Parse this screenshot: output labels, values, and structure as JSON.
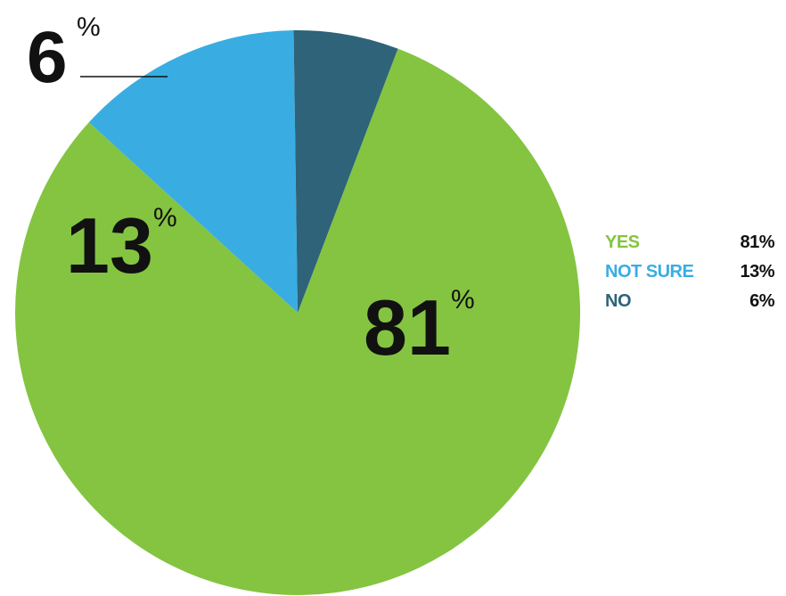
{
  "chart_data": {
    "type": "pie",
    "categories": [
      "YES",
      "NOT SURE",
      "NO"
    ],
    "values": [
      81,
      13,
      6
    ],
    "unit": "%",
    "colors": [
      "#84c441",
      "#39ade2",
      "#2e6379"
    ],
    "slice_labels": [
      "81",
      "13",
      "6"
    ],
    "slice_label_unit": "%",
    "legend": {
      "placement": "right",
      "entries": [
        {
          "label": "YES",
          "value": "81%",
          "color": "#84c441"
        },
        {
          "label": "NOT SURE",
          "value": "13%",
          "color": "#39ade2"
        },
        {
          "label": "NO",
          "value": "6%",
          "color": "#2e6379"
        }
      ]
    }
  }
}
